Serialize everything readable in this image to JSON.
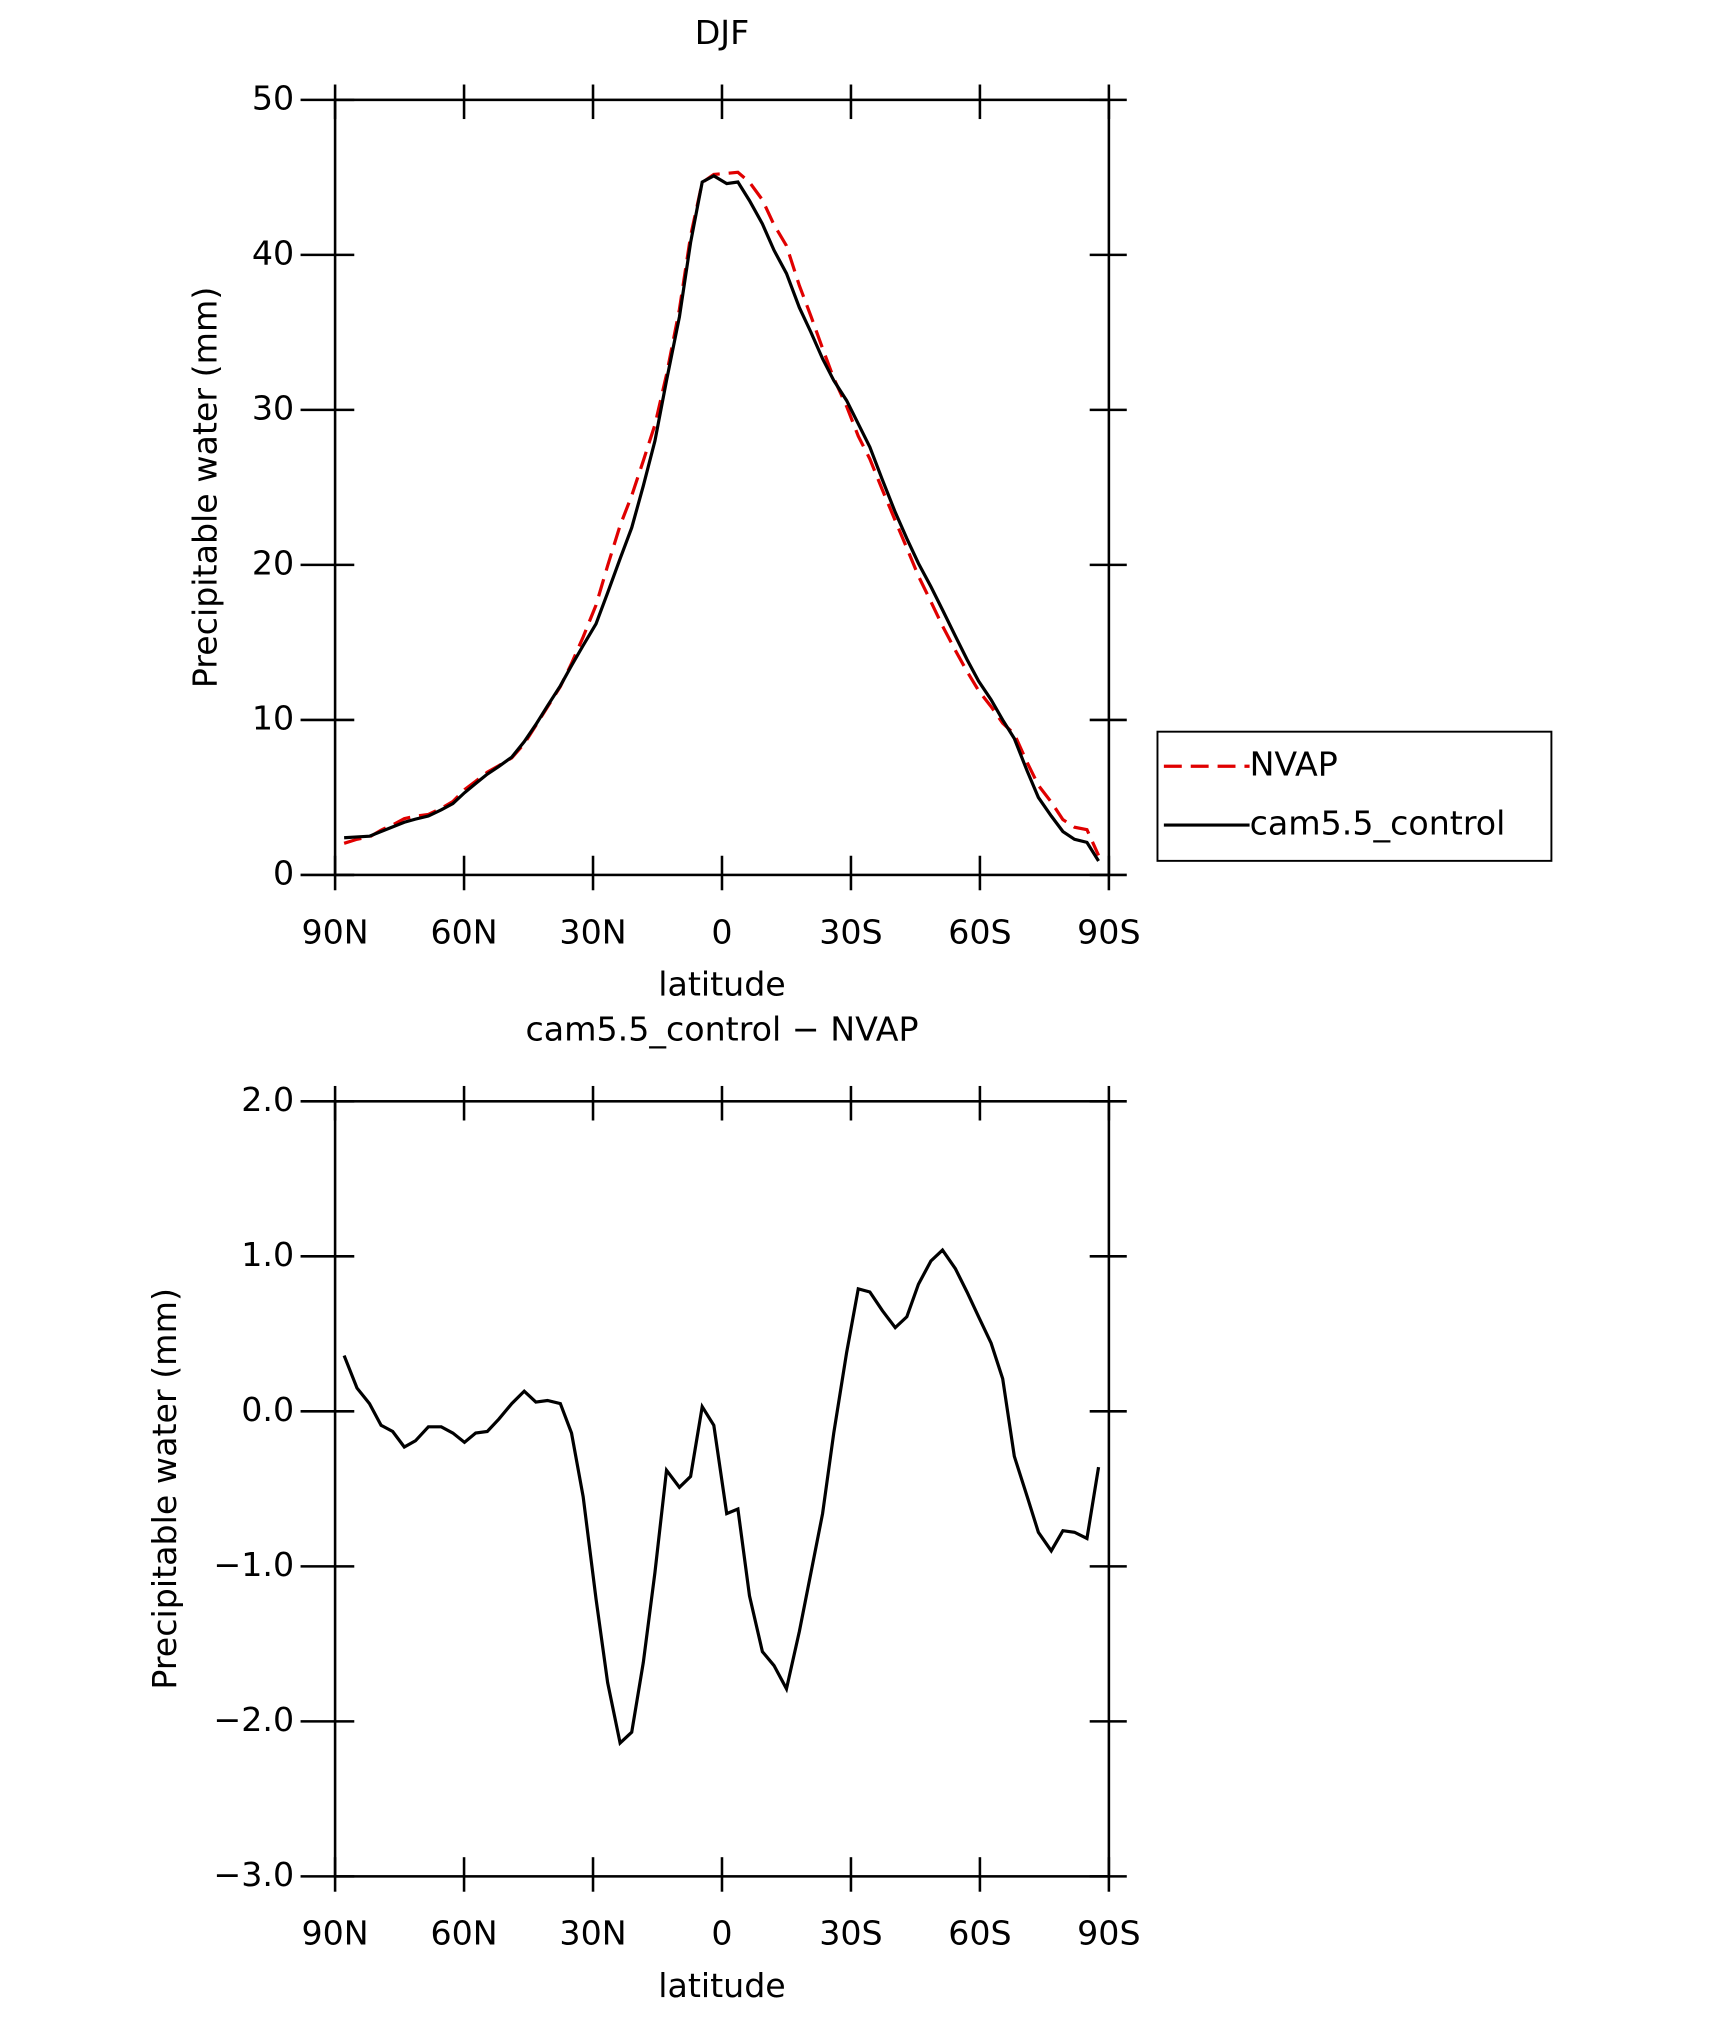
{
  "chart_data": [
    {
      "type": "line",
      "title": "DJF",
      "xlabel": "latitude",
      "ylabel": "Precipitable water (mm)",
      "x": [
        87.9,
        84.9,
        82.0,
        79.3,
        76.6,
        73.9,
        71.3,
        68.3,
        65.3,
        62.6,
        59.9,
        57.3,
        54.6,
        51.9,
        48.9,
        46.0,
        43.3,
        40.6,
        37.6,
        35.0,
        32.3,
        29.3,
        26.6,
        23.7,
        21.0,
        18.3,
        15.6,
        12.9,
        9.9,
        7.3,
        4.6,
        1.9,
        -1.1,
        -3.7,
        -6.4,
        -9.4,
        -12.1,
        -15.0,
        -18.0,
        -20.7,
        -23.4,
        -26.0,
        -29.0,
        -31.7,
        -34.4,
        -37.3,
        -40.3,
        -43.0,
        -45.7,
        -48.6,
        -51.3,
        -54.3,
        -57.0,
        -59.7,
        -62.6,
        -65.3,
        -68.0,
        -71.0,
        -73.6,
        -76.6,
        -79.3,
        -82.0,
        -84.9,
        -87.6
      ],
      "series": [
        {
          "name": "NVAP",
          "color": "#e00000",
          "dash": "dashed",
          "values": [
            2.04,
            2.3,
            2.45,
            2.89,
            3.23,
            3.63,
            3.79,
            3.9,
            4.3,
            4.74,
            5.5,
            6.04,
            6.63,
            7.05,
            7.55,
            8.47,
            9.64,
            10.83,
            12.15,
            13.64,
            15.35,
            17.41,
            19.95,
            22.54,
            24.47,
            26.72,
            29.04,
            32.28,
            36.49,
            41.22,
            44.67,
            45.19,
            45.26,
            45.33,
            44.69,
            43.55,
            41.94,
            40.59,
            38.02,
            36.04,
            33.96,
            32.04,
            30.22,
            28.31,
            26.83,
            24.85,
            22.86,
            21.09,
            19.28,
            17.63,
            16.06,
            14.48,
            13.13,
            11.89,
            10.86,
            9.79,
            9.09,
            7.25,
            5.78,
            4.7,
            3.57,
            3.08,
            2.92,
            1.26
          ]
        },
        {
          "name": "cam5.5_control",
          "color": "#000000",
          "dash": "solid",
          "values": [
            2.4,
            2.45,
            2.5,
            2.8,
            3.1,
            3.4,
            3.6,
            3.8,
            4.2,
            4.6,
            5.3,
            5.9,
            6.5,
            7.0,
            7.6,
            8.6,
            9.7,
            10.9,
            12.2,
            13.5,
            14.8,
            16.2,
            18.2,
            20.4,
            22.4,
            25.1,
            28.0,
            31.9,
            36.0,
            40.8,
            44.7,
            45.1,
            44.6,
            44.7,
            43.5,
            42.0,
            40.3,
            38.8,
            36.6,
            35.0,
            33.3,
            31.9,
            30.6,
            29.1,
            27.6,
            25.5,
            23.4,
            21.7,
            20.1,
            18.6,
            17.1,
            15.4,
            13.9,
            12.5,
            11.3,
            10.0,
            8.8,
            6.7,
            5.0,
            3.8,
            2.8,
            2.3,
            2.1,
            0.9
          ]
        }
      ],
      "xlim": [
        90,
        -90
      ],
      "xticks": [
        {
          "value": 90,
          "label": "90N"
        },
        {
          "value": 60,
          "label": "60N"
        },
        {
          "value": 30,
          "label": "30N"
        },
        0,
        {
          "value": -30,
          "label": "30S"
        },
        {
          "value": -60,
          "label": "60S"
        },
        {
          "value": -90,
          "label": "90S"
        }
      ],
      "ylim": [
        0,
        50
      ],
      "yticks": [
        0,
        10,
        20,
        30,
        40,
        50
      ],
      "grid": false,
      "legend": "right"
    },
    {
      "type": "line",
      "title": "cam5.5_control − NVAP",
      "xlabel": "latitude",
      "ylabel": "Precipitable water (mm)",
      "x": [
        87.9,
        84.9,
        82.0,
        79.3,
        76.6,
        73.9,
        71.3,
        68.3,
        65.3,
        62.6,
        59.9,
        57.3,
        54.6,
        51.9,
        48.9,
        46.0,
        43.3,
        40.6,
        37.6,
        35.0,
        32.3,
        29.3,
        26.6,
        23.7,
        21.0,
        18.3,
        15.6,
        12.9,
        9.9,
        7.3,
        4.6,
        1.9,
        -1.1,
        -3.7,
        -6.4,
        -9.4,
        -12.1,
        -15.0,
        -18.0,
        -20.7,
        -23.4,
        -26.0,
        -29.0,
        -31.7,
        -34.4,
        -37.3,
        -40.3,
        -43.0,
        -45.7,
        -48.6,
        -51.3,
        -54.3,
        -57.0,
        -59.7,
        -62.6,
        -65.3,
        -68.0,
        -71.0,
        -73.6,
        -76.6,
        -79.3,
        -82.0,
        -84.9,
        -87.6
      ],
      "values": [
        0.36,
        0.15,
        0.05,
        -0.09,
        -0.13,
        -0.23,
        -0.19,
        -0.1,
        -0.1,
        -0.14,
        -0.2,
        -0.14,
        -0.13,
        -0.05,
        0.05,
        0.13,
        0.06,
        0.07,
        0.05,
        -0.14,
        -0.55,
        -1.21,
        -1.75,
        -2.14,
        -2.07,
        -1.62,
        -1.04,
        -0.38,
        -0.49,
        -0.42,
        0.03,
        -0.09,
        -0.66,
        -0.63,
        -1.19,
        -1.55,
        -1.64,
        -1.79,
        -1.42,
        -1.04,
        -0.66,
        -0.14,
        0.38,
        0.79,
        0.77,
        0.65,
        0.54,
        0.61,
        0.82,
        0.97,
        1.04,
        0.92,
        0.77,
        0.61,
        0.44,
        0.21,
        -0.29,
        -0.55,
        -0.78,
        -0.9,
        -0.77,
        -0.78,
        -0.82,
        -0.36
      ],
      "color": "#000000",
      "xlim": [
        90,
        -90
      ],
      "xticks": [
        {
          "value": 90,
          "label": "90N"
        },
        {
          "value": 60,
          "label": "60N"
        },
        {
          "value": 30,
          "label": "30N"
        },
        0,
        {
          "value": -30,
          "label": "30S"
        },
        {
          "value": -60,
          "label": "60S"
        },
        {
          "value": -90,
          "label": "90S"
        }
      ],
      "ylim": [
        -3,
        2
      ],
      "yticks": [
        {
          "value": -3,
          "label": "−3.0"
        },
        {
          "value": -2,
          "label": "−2.0"
        },
        {
          "value": -1,
          "label": "−1.0"
        },
        {
          "value": 0,
          "label": "0.0"
        },
        {
          "value": 1,
          "label": "1.0"
        },
        {
          "value": 2,
          "label": "2.0"
        }
      ],
      "grid": false
    }
  ]
}
